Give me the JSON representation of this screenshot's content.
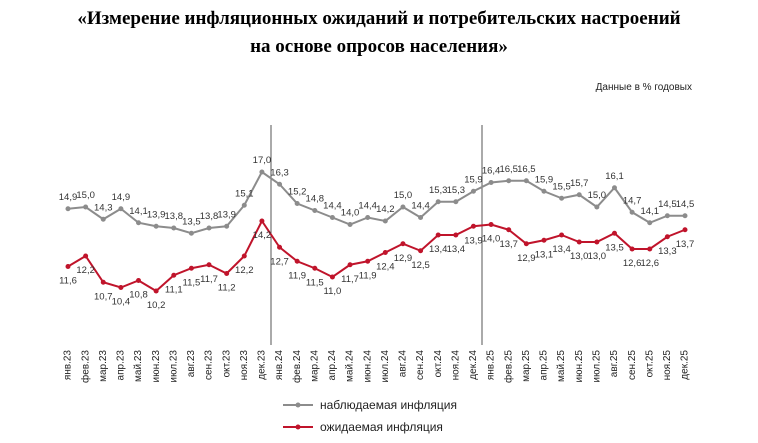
{
  "chart_data": {
    "type": "line",
    "title": [
      "«Измерение инфляционных ожиданий и потребительских настроений",
      "на основе опросов населения»"
    ],
    "note": "Данные в % годовых",
    "categories": [
      "янв.23",
      "фев.23",
      "мар.23",
      "апр.23",
      "май.23",
      "июн.23",
      "июл.23",
      "авг.23",
      "сен.23",
      "окт.23",
      "ноя.23",
      "дек.23",
      "янв.24",
      "фев.24",
      "мар.24",
      "апр.24",
      "май.24",
      "июн.24",
      "июл.24",
      "авг.24",
      "сен.24",
      "окт.24",
      "ноя.24",
      "дек.24",
      "янв.25",
      "фев.25",
      "мар.25",
      "апр.25",
      "май.25",
      "июн.25",
      "июл.25",
      "авг.25",
      "сен.25",
      "окт.25",
      "ноя.25",
      "дек.25"
    ],
    "series": [
      {
        "name": "наблюдаемая инфляция",
        "color": "#8c8c8c",
        "values": [
          14.9,
          15.0,
          14.3,
          14.9,
          14.1,
          13.9,
          13.8,
          13.5,
          13.8,
          13.9,
          15.1,
          17.0,
          16.3,
          15.2,
          14.8,
          14.4,
          14.0,
          14.4,
          14.2,
          15.0,
          14.4,
          15.3,
          15.3,
          15.9,
          16.4,
          16.5,
          16.5,
          15.9,
          15.5,
          15.7,
          15.0,
          16.1,
          14.7,
          14.1,
          14.5,
          14.5
        ],
        "value_labels": [
          "14,9",
          "15,0",
          "14,3",
          "14,9",
          "14,1",
          "13,9",
          "13,8",
          "13,5",
          "13,8",
          "13,9",
          "15,1",
          "17,0",
          "16,3",
          "15,2",
          "14,8",
          "14,4",
          "14,0",
          "14,4",
          "14,2",
          "15,0",
          "14,4",
          "15,3",
          "15,3",
          "15,9",
          "16,4",
          "16,5",
          "16,5",
          "15,9",
          "15,5",
          "15,7",
          "15,0",
          "16,1",
          "14,7",
          "14,1",
          "14,5",
          "14,5"
        ]
      },
      {
        "name": "ожидаемая инфляция",
        "color": "#c0142b",
        "values": [
          11.6,
          12.2,
          10.7,
          10.4,
          10.8,
          10.2,
          11.1,
          11.5,
          11.7,
          11.2,
          12.2,
          14.2,
          12.7,
          11.9,
          11.5,
          11.0,
          11.7,
          11.9,
          12.4,
          12.9,
          12.5,
          13.4,
          13.4,
          13.9,
          14.0,
          13.7,
          12.9,
          13.1,
          13.4,
          13.0,
          13.0,
          13.5,
          12.6,
          12.6,
          13.3,
          13.7
        ],
        "value_labels": [
          "11,6",
          "12,2",
          "10,7",
          "10,4",
          "10,8",
          "10,2",
          "11,1",
          "11,5",
          "11,7",
          "11,2",
          "12,2",
          "14,2",
          "12,7",
          "11,9",
          "11,5",
          "11,0",
          "11,7",
          "11,9",
          "12,4",
          "12,9",
          "12,5",
          "13,4",
          "13,4",
          "13,9",
          "14,0",
          "13,7",
          "12,9",
          "13,1",
          "13,4",
          "13,0",
          "13,0",
          "13,5",
          "12,6",
          "12,6",
          "13,3",
          "13,7"
        ]
      }
    ]
  }
}
